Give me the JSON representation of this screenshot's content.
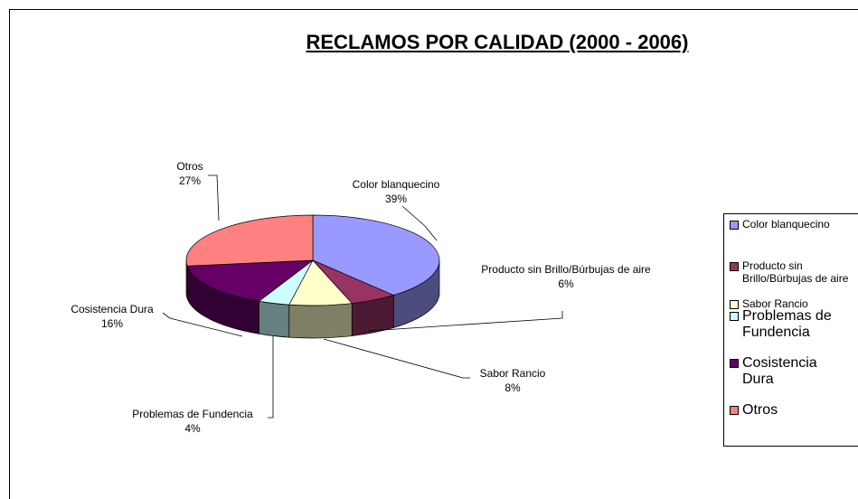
{
  "chart_data": {
    "type": "pie",
    "title": "RECLAMOS POR CALIDAD (2000 - 2006)",
    "categories": [
      "Color blanquecino",
      "Producto sin Brillo/Búrbujas de aire",
      "Sabor Rancio",
      "Problemas de Fundencia",
      "Cosistencia Dura",
      "Otros"
    ],
    "values": [
      39,
      6,
      8,
      4,
      16,
      27
    ],
    "value_labels": [
      "39%",
      "6%",
      "8%",
      "4%",
      "16%",
      "27%"
    ],
    "colors": [
      "#9999ff",
      "#993366",
      "#ffffcc",
      "#ccffff",
      "#660066",
      "#ff8080"
    ],
    "legend": "right"
  }
}
